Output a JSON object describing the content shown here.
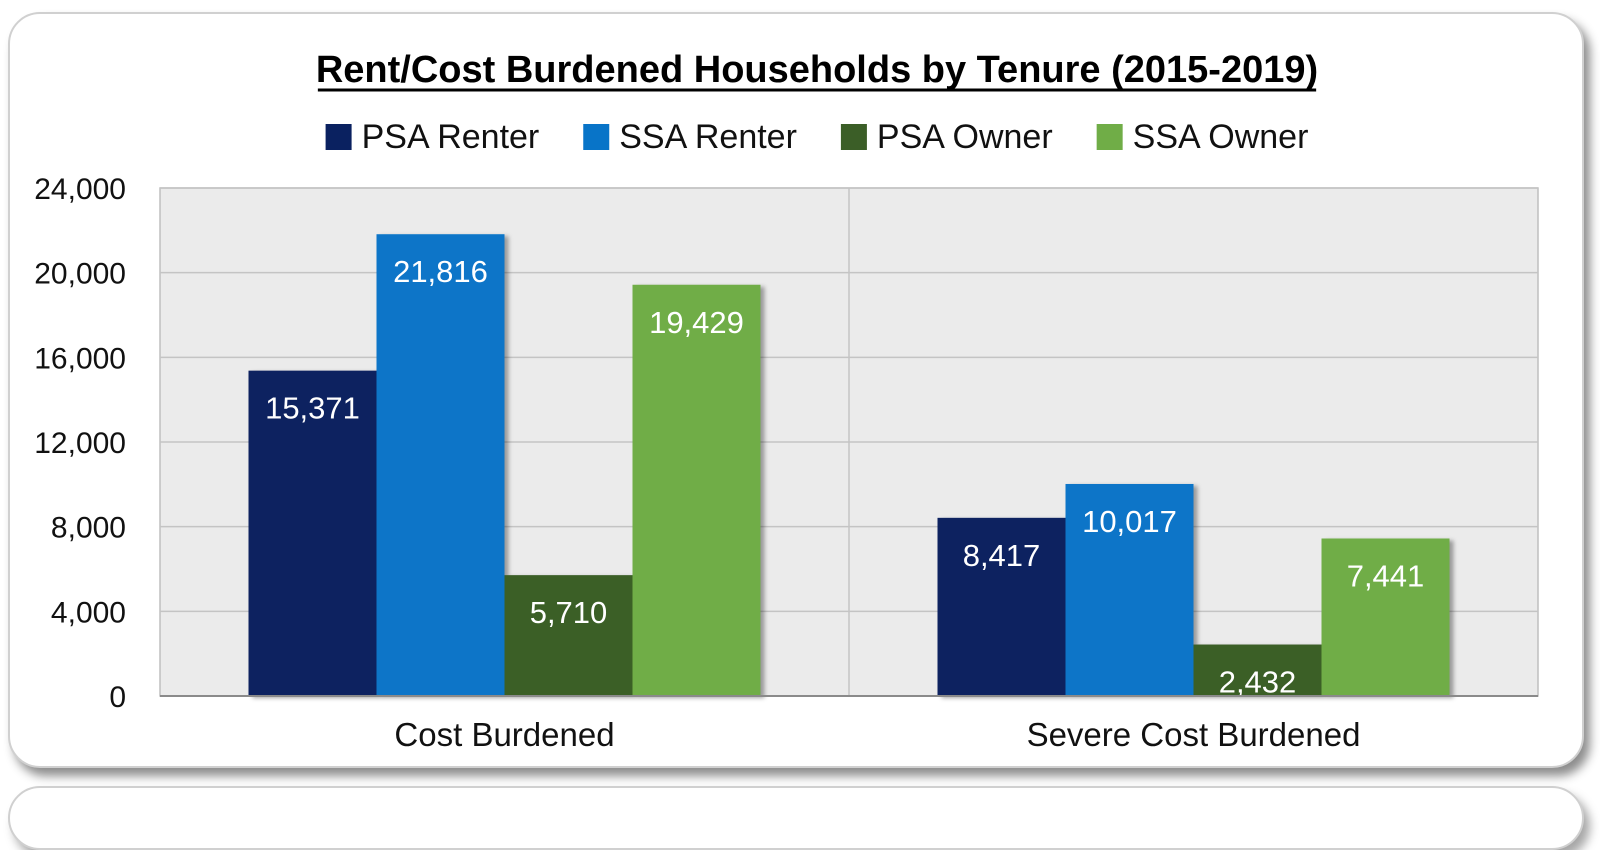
{
  "chart_data": {
    "type": "bar",
    "title": "Rent/Cost Burdened Households by Tenure (2015-2019)",
    "xlabel": "",
    "ylabel": "",
    "categories": [
      "Cost Burdened",
      "Severe Cost Burdened"
    ],
    "series": [
      {
        "name": "PSA Renter",
        "color": "#0a2160",
        "values": [
          15371,
          8417
        ],
        "labels": [
          "15,371",
          "8,417"
        ]
      },
      {
        "name": "SSA Renter",
        "color": "#0874c8",
        "values": [
          21816,
          10017
        ],
        "labels": [
          "21,816",
          "10,017"
        ]
      },
      {
        "name": "PSA Owner",
        "color": "#3b5e27",
        "values": [
          5710,
          2432
        ],
        "labels": [
          "5,710",
          "2,432"
        ]
      },
      {
        "name": "SSA Owner",
        "color": "#70ad47",
        "values": [
          19429,
          7441
        ],
        "labels": [
          "19,429",
          "7,441"
        ]
      }
    ],
    "ylim": [
      0,
      24000
    ],
    "yticks": [
      "0",
      "4,000",
      "8,000",
      "12,000",
      "16,000",
      "20,000",
      "24,000"
    ],
    "ytick_values": [
      0,
      4000,
      8000,
      12000,
      16000,
      20000,
      24000
    ],
    "grid": true,
    "legend_position": "top",
    "plot_background": "#ebebeb"
  }
}
